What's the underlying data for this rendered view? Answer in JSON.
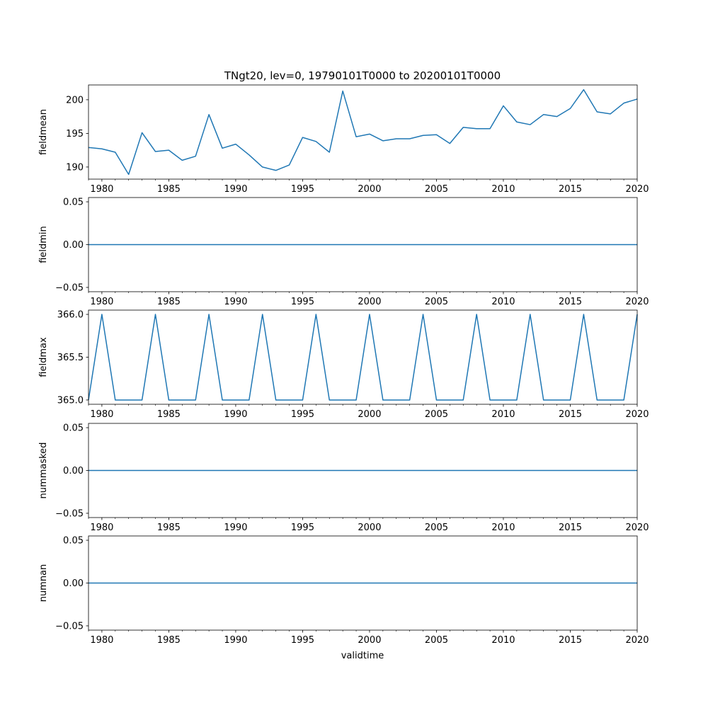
{
  "title": "TNgt20, lev=0, 19790101T0000 to 20200101T0000",
  "xlabel": "validtime",
  "colors": {
    "line": "#1f77b4",
    "axes": "#000000",
    "background": "#ffffff"
  },
  "chart_data": [
    {
      "type": "line",
      "ylabel": "fieldmean",
      "xlim": [
        1979,
        2020
      ],
      "ylim": [
        188.2,
        202.2
      ],
      "x_ticks": [
        "1980",
        "1985",
        "1990",
        "1995",
        "2000",
        "2005",
        "2010",
        "2015",
        "2020"
      ],
      "y_ticks": [
        "190",
        "195",
        "200"
      ],
      "x": [
        1979,
        1980,
        1981,
        1982,
        1983,
        1984,
        1985,
        1986,
        1987,
        1988,
        1989,
        1990,
        1991,
        1992,
        1993,
        1994,
        1995,
        1996,
        1997,
        1998,
        1999,
        2000,
        2001,
        2002,
        2003,
        2004,
        2005,
        2006,
        2007,
        2008,
        2009,
        2010,
        2011,
        2012,
        2013,
        2014,
        2015,
        2016,
        2017,
        2018,
        2019,
        2020
      ],
      "values": [
        192.9,
        192.7,
        192.2,
        188.9,
        195.1,
        192.3,
        192.5,
        191.0,
        191.6,
        197.8,
        192.8,
        193.4,
        191.8,
        190.0,
        189.5,
        190.3,
        194.4,
        193.8,
        192.2,
        201.3,
        194.5,
        194.9,
        193.9,
        194.2,
        194.2,
        194.7,
        194.8,
        193.5,
        195.9,
        195.7,
        195.7,
        199.1,
        196.7,
        196.3,
        197.8,
        197.5,
        198.7,
        201.5,
        198.2,
        197.9,
        199.5,
        200.1
      ]
    },
    {
      "type": "line",
      "ylabel": "fieldmin",
      "xlim": [
        1979,
        2020
      ],
      "ylim": [
        -0.055,
        0.055
      ],
      "x_ticks": [
        "1980",
        "1985",
        "1990",
        "1995",
        "2000",
        "2005",
        "2010",
        "2015",
        "2020"
      ],
      "y_ticks": [
        "−0.05",
        "0.00",
        "0.05"
      ],
      "x": [
        1979,
        2020
      ],
      "values": [
        0,
        0
      ]
    },
    {
      "type": "line",
      "ylabel": "fieldmax",
      "xlim": [
        1979,
        2020
      ],
      "ylim": [
        364.95,
        366.05
      ],
      "x_ticks": [
        "1980",
        "1985",
        "1990",
        "1995",
        "2000",
        "2005",
        "2010",
        "2015",
        "2020"
      ],
      "y_ticks": [
        "365.0",
        "365.5",
        "366.0"
      ],
      "x": [
        1979,
        1980,
        1981,
        1982,
        1983,
        1984,
        1985,
        1986,
        1987,
        1988,
        1989,
        1990,
        1991,
        1992,
        1993,
        1994,
        1995,
        1996,
        1997,
        1998,
        1999,
        2000,
        2001,
        2002,
        2003,
        2004,
        2005,
        2006,
        2007,
        2008,
        2009,
        2010,
        2011,
        2012,
        2013,
        2014,
        2015,
        2016,
        2017,
        2018,
        2019,
        2020
      ],
      "values": [
        365,
        366,
        365,
        365,
        365,
        366,
        365,
        365,
        365,
        366,
        365,
        365,
        365,
        366,
        365,
        365,
        365,
        366,
        365,
        365,
        365,
        366,
        365,
        365,
        365,
        366,
        365,
        365,
        365,
        366,
        365,
        365,
        365,
        366,
        365,
        365,
        365,
        366,
        365,
        365,
        365,
        366
      ]
    },
    {
      "type": "line",
      "ylabel": "nummasked",
      "xlim": [
        1979,
        2020
      ],
      "ylim": [
        -0.055,
        0.055
      ],
      "x_ticks": [
        "1980",
        "1985",
        "1990",
        "1995",
        "2000",
        "2005",
        "2010",
        "2015",
        "2020"
      ],
      "y_ticks": [
        "−0.05",
        "0.00",
        "0.05"
      ],
      "x": [
        1979,
        2020
      ],
      "values": [
        0,
        0
      ]
    },
    {
      "type": "line",
      "ylabel": "numnan",
      "xlim": [
        1979,
        2020
      ],
      "ylim": [
        -0.055,
        0.055
      ],
      "x_ticks": [
        "1980",
        "1985",
        "1990",
        "1995",
        "2000",
        "2005",
        "2010",
        "2015",
        "2020"
      ],
      "y_ticks": [
        "−0.05",
        "0.00",
        "0.05"
      ],
      "x": [
        1979,
        2020
      ],
      "values": [
        0,
        0
      ]
    }
  ]
}
